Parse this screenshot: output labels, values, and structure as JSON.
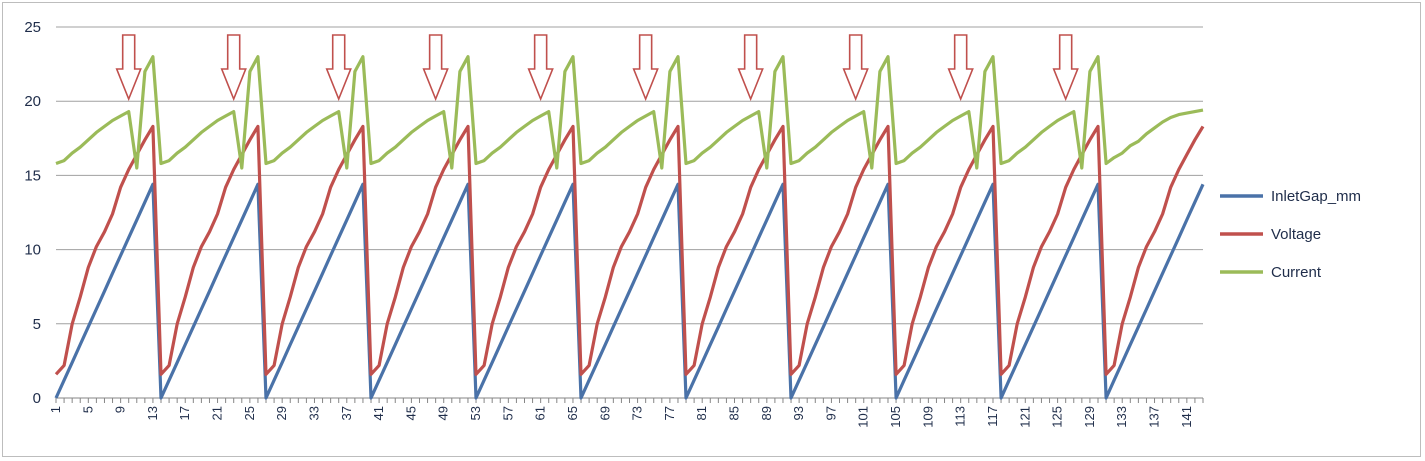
{
  "chart_data": {
    "type": "line",
    "title": "",
    "xlabel": "",
    "ylabel": "",
    "ylim": [
      0,
      25
    ],
    "yticks": [
      0,
      5,
      10,
      15,
      20,
      25
    ],
    "x_range": [
      1,
      143
    ],
    "x_tick_labels": [
      "1",
      "5",
      "9",
      "13",
      "17",
      "21",
      "25",
      "29",
      "33",
      "37",
      "41",
      "45",
      "49",
      "53",
      "57",
      "61",
      "65",
      "69",
      "73",
      "77",
      "81",
      "85",
      "89",
      "93",
      "97",
      "101",
      "105",
      "109",
      "113",
      "117",
      "121",
      "125",
      "129",
      "133",
      "137",
      "141"
    ],
    "grid": "horizontal",
    "legend_position": "right",
    "cycle_starts": [
      1,
      14,
      27,
      40,
      53,
      66,
      79,
      92,
      105,
      118,
      131
    ],
    "peak_positions": [
      13,
      26,
      39,
      52,
      65,
      78,
      91,
      104,
      117,
      130
    ],
    "arrow_positions": [
      10,
      23,
      36,
      48,
      61,
      74,
      87,
      100,
      113,
      126
    ],
    "series": [
      {
        "name": "InletGap_mm",
        "color": "#4a72a8",
        "description": "sawtooth rising linearly from 0 to about 14.4 over each 13-sample cycle, then dropping to 0",
        "cycle_min": 0,
        "cycle_max": 14.4
      },
      {
        "name": "Voltage",
        "color": "#c0504d",
        "description": "rises from about 1.8 to about 18.4 each cycle, then drops sharply",
        "cycle_values": [
          1.6,
          2.2,
          5,
          6.8,
          8.8,
          10.2,
          11.2,
          12.4,
          14.2,
          15.4,
          16.4,
          17.4,
          18.3
        ]
      },
      {
        "name": "Current",
        "color": "#9bbb59",
        "description": "gradual rise from about 15.8 to 19.5, sharp dip to about 15.5, spike to about 22-23, then drop",
        "cycle_values": [
          15.8,
          16.0,
          16.5,
          16.9,
          17.4,
          17.9,
          18.3,
          18.7,
          19.0,
          19.3,
          15.5,
          22.0,
          22.3
        ]
      }
    ]
  },
  "legend": {
    "items": [
      {
        "label": "InletGap_mm",
        "color": "#4a72a8"
      },
      {
        "label": "Voltage",
        "color": "#c0504d"
      },
      {
        "label": "Current",
        "color": "#9bbb59"
      }
    ]
  },
  "arrow_color": "#c0504d",
  "gridline_color": "#a0a0a0",
  "axis_text_color": "#1f2d4a"
}
